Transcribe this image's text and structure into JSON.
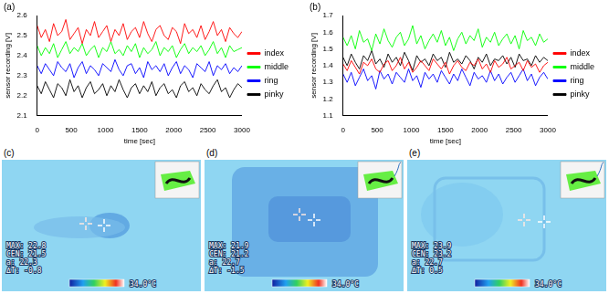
{
  "chart_data": [
    {
      "type": "line",
      "title": "(a)",
      "x_label": "time [sec]",
      "y_label": "sensor recording [V]",
      "xlim": [
        0,
        3000
      ],
      "xticks": [
        0,
        500,
        1000,
        1500,
        2000,
        2500,
        3000
      ],
      "ylim": [
        2.1,
        2.6
      ],
      "yticks": [
        2.1,
        2.2,
        2.3,
        2.4,
        2.5,
        2.6
      ],
      "grid": false,
      "legend": "right",
      "x": [
        0,
        60,
        120,
        180,
        240,
        300,
        360,
        420,
        480,
        540,
        600,
        660,
        720,
        780,
        840,
        900,
        960,
        1020,
        1080,
        1140,
        1200,
        1260,
        1320,
        1380,
        1440,
        1500,
        1560,
        1620,
        1680,
        1740,
        1800,
        1860,
        1920,
        1980,
        2040,
        2100,
        2160,
        2220,
        2280,
        2340,
        2400,
        2460,
        2520,
        2580,
        2640,
        2700,
        2760,
        2820,
        2880,
        2940,
        3000
      ],
      "series": [
        {
          "name": "index",
          "color": "#ff0000",
          "values": [
            2.55,
            2.49,
            2.53,
            2.47,
            2.56,
            2.5,
            2.52,
            2.58,
            2.48,
            2.51,
            2.54,
            2.46,
            2.53,
            2.5,
            2.57,
            2.49,
            2.52,
            2.55,
            2.47,
            2.53,
            2.5,
            2.56,
            2.48,
            2.52,
            2.54,
            2.49,
            2.57,
            2.51,
            2.47,
            2.53,
            2.55,
            2.5,
            2.48,
            2.54,
            2.52,
            2.46,
            2.56,
            2.51,
            2.53,
            2.49,
            2.55,
            2.48,
            2.52,
            2.57,
            2.5,
            2.53,
            2.47,
            2.54,
            2.51,
            2.49,
            2.52
          ]
        },
        {
          "name": "middle",
          "color": "#00ff00",
          "values": [
            2.45,
            2.4,
            2.44,
            2.41,
            2.46,
            2.39,
            2.43,
            2.47,
            2.41,
            2.44,
            2.42,
            2.46,
            2.4,
            2.43,
            2.45,
            2.39,
            2.44,
            2.42,
            2.47,
            2.41,
            2.43,
            2.4,
            2.45,
            2.42,
            2.46,
            2.39,
            2.44,
            2.41,
            2.43,
            2.47,
            2.4,
            2.44,
            2.42,
            2.45,
            2.39,
            2.43,
            2.46,
            2.41,
            2.44,
            2.42,
            2.45,
            2.4,
            2.43,
            2.47,
            2.41,
            2.44,
            2.39,
            2.45,
            2.42,
            2.43,
            2.44
          ]
        },
        {
          "name": "ring",
          "color": "#0000ff",
          "values": [
            2.35,
            2.31,
            2.36,
            2.33,
            2.3,
            2.37,
            2.34,
            2.32,
            2.36,
            2.29,
            2.34,
            2.37,
            2.31,
            2.35,
            2.33,
            2.3,
            2.36,
            2.34,
            2.32,
            2.38,
            2.33,
            2.3,
            2.35,
            2.36,
            2.31,
            2.34,
            2.29,
            2.37,
            2.33,
            2.35,
            2.32,
            2.36,
            2.3,
            2.34,
            2.37,
            2.31,
            2.35,
            2.33,
            2.29,
            2.36,
            2.34,
            2.32,
            2.37,
            2.3,
            2.35,
            2.33,
            2.36,
            2.31,
            2.34,
            2.32,
            2.35
          ]
        },
        {
          "name": "pinky",
          "color": "#000000",
          "values": [
            2.25,
            2.21,
            2.27,
            2.23,
            2.19,
            2.26,
            2.24,
            2.2,
            2.28,
            2.22,
            2.25,
            2.19,
            2.24,
            2.27,
            2.21,
            2.23,
            2.26,
            2.2,
            2.25,
            2.22,
            2.28,
            2.23,
            2.19,
            2.24,
            2.26,
            2.21,
            2.25,
            2.22,
            2.27,
            2.2,
            2.24,
            2.26,
            2.21,
            2.23,
            2.19,
            2.25,
            2.27,
            2.22,
            2.24,
            2.2,
            2.26,
            2.23,
            2.21,
            2.25,
            2.28,
            2.22,
            2.24,
            2.19,
            2.23,
            2.26,
            2.24
          ]
        }
      ]
    },
    {
      "type": "line",
      "title": "(b)",
      "x_label": "time [sec]",
      "y_label": "sensor recording [V]",
      "xlim": [
        0,
        3000
      ],
      "xticks": [
        0,
        500,
        1000,
        1500,
        2000,
        2500,
        3000
      ],
      "ylim": [
        1.1,
        1.7
      ],
      "yticks": [
        1.1,
        1.2,
        1.3,
        1.4,
        1.5,
        1.6,
        1.7
      ],
      "grid": false,
      "legend": "right",
      "x": [
        0,
        60,
        120,
        180,
        240,
        300,
        360,
        420,
        480,
        540,
        600,
        660,
        720,
        780,
        840,
        900,
        960,
        1020,
        1080,
        1140,
        1200,
        1260,
        1320,
        1380,
        1440,
        1500,
        1560,
        1620,
        1680,
        1740,
        1800,
        1860,
        1920,
        1980,
        2040,
        2100,
        2160,
        2220,
        2280,
        2340,
        2400,
        2460,
        2520,
        2580,
        2640,
        2700,
        2760,
        2820,
        2880,
        2940,
        3000
      ],
      "series": [
        {
          "name": "index",
          "color": "#ff0000",
          "values": [
            1.41,
            1.37,
            1.43,
            1.39,
            1.35,
            1.42,
            1.4,
            1.44,
            1.38,
            1.36,
            1.41,
            1.43,
            1.37,
            1.4,
            1.45,
            1.38,
            1.42,
            1.36,
            1.39,
            1.43,
            1.4,
            1.37,
            1.44,
            1.41,
            1.38,
            1.42,
            1.35,
            1.4,
            1.43,
            1.39,
            1.37,
            1.42,
            1.4,
            1.44,
            1.38,
            1.41,
            1.36,
            1.43,
            1.39,
            1.41,
            1.45,
            1.38,
            1.4,
            1.42,
            1.37,
            1.43,
            1.39,
            1.41,
            1.36,
            1.4,
            1.42
          ]
        },
        {
          "name": "middle",
          "color": "#00ff00",
          "values": [
            1.57,
            1.52,
            1.58,
            1.5,
            1.61,
            1.54,
            1.56,
            1.49,
            1.59,
            1.53,
            1.62,
            1.55,
            1.51,
            1.57,
            1.6,
            1.52,
            1.56,
            1.64,
            1.53,
            1.58,
            1.5,
            1.55,
            1.59,
            1.54,
            1.61,
            1.52,
            1.57,
            1.49,
            1.56,
            1.6,
            1.53,
            1.58,
            1.55,
            1.62,
            1.51,
            1.57,
            1.54,
            1.6,
            1.52,
            1.56,
            1.59,
            1.53,
            1.58,
            1.5,
            1.61,
            1.55,
            1.57,
            1.52,
            1.59,
            1.54,
            1.56
          ]
        },
        {
          "name": "ring",
          "color": "#0000ff",
          "values": [
            1.35,
            1.3,
            1.36,
            1.28,
            1.33,
            1.38,
            1.31,
            1.34,
            1.26,
            1.37,
            1.32,
            1.35,
            1.29,
            1.36,
            1.33,
            1.3,
            1.38,
            1.31,
            1.34,
            1.27,
            1.36,
            1.32,
            1.35,
            1.3,
            1.37,
            1.33,
            1.29,
            1.35,
            1.31,
            1.38,
            1.33,
            1.28,
            1.36,
            1.32,
            1.34,
            1.3,
            1.37,
            1.31,
            1.35,
            1.29,
            1.33,
            1.36,
            1.3,
            1.34,
            1.38,
            1.31,
            1.35,
            1.28,
            1.33,
            1.36,
            1.32
          ]
        },
        {
          "name": "pinky",
          "color": "#000000",
          "values": [
            1.45,
            1.4,
            1.47,
            1.42,
            1.38,
            1.46,
            1.43,
            1.49,
            1.41,
            1.44,
            1.39,
            1.47,
            1.42,
            1.45,
            1.4,
            1.48,
            1.43,
            1.37,
            1.46,
            1.42,
            1.44,
            1.4,
            1.47,
            1.43,
            1.45,
            1.39,
            1.48,
            1.42,
            1.44,
            1.41,
            1.46,
            1.43,
            1.38,
            1.45,
            1.42,
            1.47,
            1.4,
            1.44,
            1.43,
            1.46,
            1.41,
            1.45,
            1.39,
            1.47,
            1.43,
            1.44,
            1.4,
            1.46,
            1.42,
            1.45,
            1.43
          ]
        }
      ]
    }
  ],
  "thermal_images": [
    {
      "label": "(c)",
      "readings": [
        "MAX: 22.8",
        "CEN: 21.5",
        "a: 22.3",
        "ΔT: -0.8"
      ],
      "scale_max": "34.0°C"
    },
    {
      "label": "(d)",
      "readings": [
        "MAX: 21.9",
        "CEN: 21.2",
        "a: 22.7",
        "ΔT: -1.5"
      ],
      "scale_max": "34.0°C"
    },
    {
      "label": "(e)",
      "readings": [
        "MAX: 23.9",
        "CEN: 23.2",
        "a: 22.7",
        "ΔT: 0.5"
      ],
      "scale_max": "34.0°C"
    }
  ]
}
